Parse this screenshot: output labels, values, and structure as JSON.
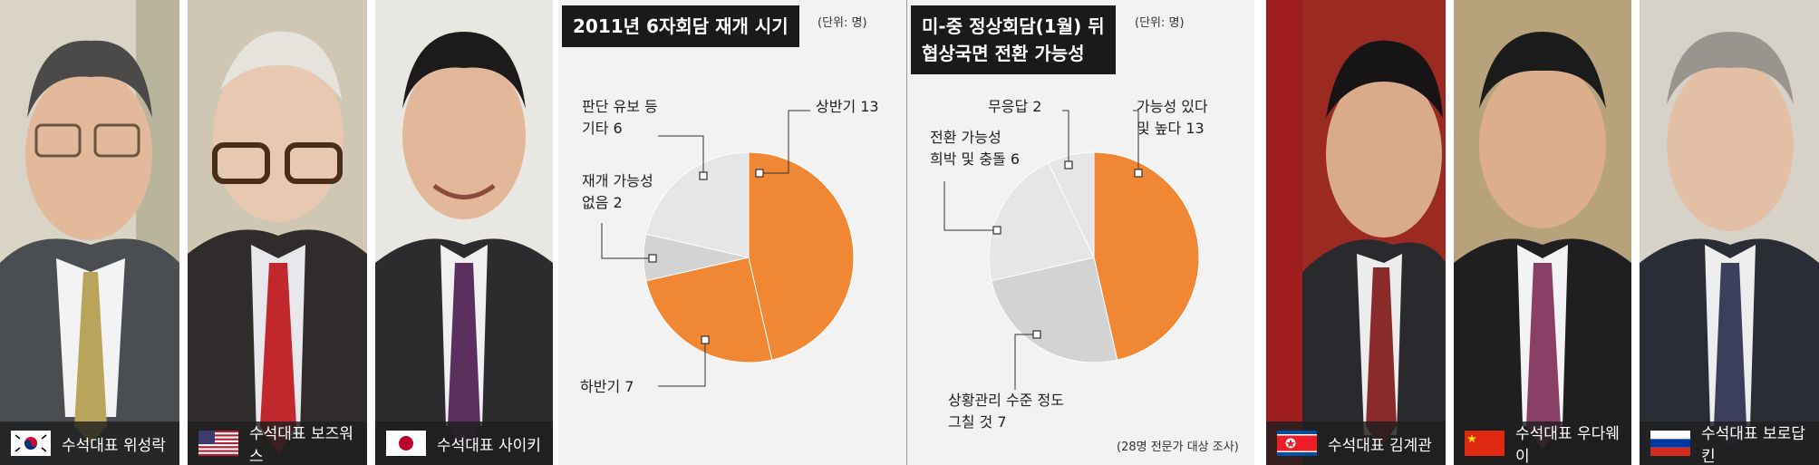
{
  "portraits": [
    {
      "caption": "수석대표 위성락",
      "flag": "korea"
    },
    {
      "caption": "수석대표 보즈워스",
      "flag": "usa"
    },
    {
      "caption": "수석대표 사이키",
      "flag": "japan"
    },
    {
      "caption": "수석대표 김계관",
      "flag": "north-korea"
    },
    {
      "caption": "수석대표 우다웨이",
      "flag": "china"
    },
    {
      "caption": "수석대표 보로답킨",
      "flag": "russia"
    }
  ],
  "chart1": {
    "title": "2011년 6자회담 재개 시기",
    "unit": "(단위: 명)"
  },
  "chart2": {
    "title_line1": "미-중 정상회담(1월) 뒤",
    "title_line2": "협상국면 전환 가능성",
    "unit": "(단위: 명)"
  },
  "footnote": "(28명 전문가 대상 조사)",
  "colors": {
    "orange": "#f08734",
    "light": "#e6e6e6",
    "mid": "#d3d3d3",
    "background": "#f2f2f2"
  },
  "chart_data": [
    {
      "type": "pie",
      "title": "2011년 6자회담 재개 시기",
      "slices": [
        {
          "label_line1": "상반기 13",
          "label_line2": "",
          "value": 13,
          "color": "#f08734"
        },
        {
          "label_line1": "하반기 7",
          "label_line2": "",
          "value": 7,
          "color": "#f08734"
        },
        {
          "label_line1": "재개 가능성",
          "label_line2": "없음 2",
          "value": 2,
          "color": "#d3d3d3"
        },
        {
          "label_line1": "판단 유보 등",
          "label_line2": "기타 6",
          "value": 6,
          "color": "#e6e6e6"
        }
      ]
    },
    {
      "type": "pie",
      "title": "미-중 정상회담(1월) 뒤 협상국면 전환 가능성",
      "slices": [
        {
          "label_line1": "가능성 있다",
          "label_line2": "및 높다 13",
          "value": 13,
          "color": "#f08734"
        },
        {
          "label_line1": "상황관리 수준 정도",
          "label_line2": "그칠 것 7",
          "value": 7,
          "color": "#d3d3d3"
        },
        {
          "label_line1": "전환 가능성",
          "label_line2": "희박 및 충돌 6",
          "value": 6,
          "color": "#e6e6e6"
        },
        {
          "label_line1": "무응답 2",
          "label_line2": "",
          "value": 2,
          "color": "#e6e6e6"
        }
      ]
    }
  ]
}
